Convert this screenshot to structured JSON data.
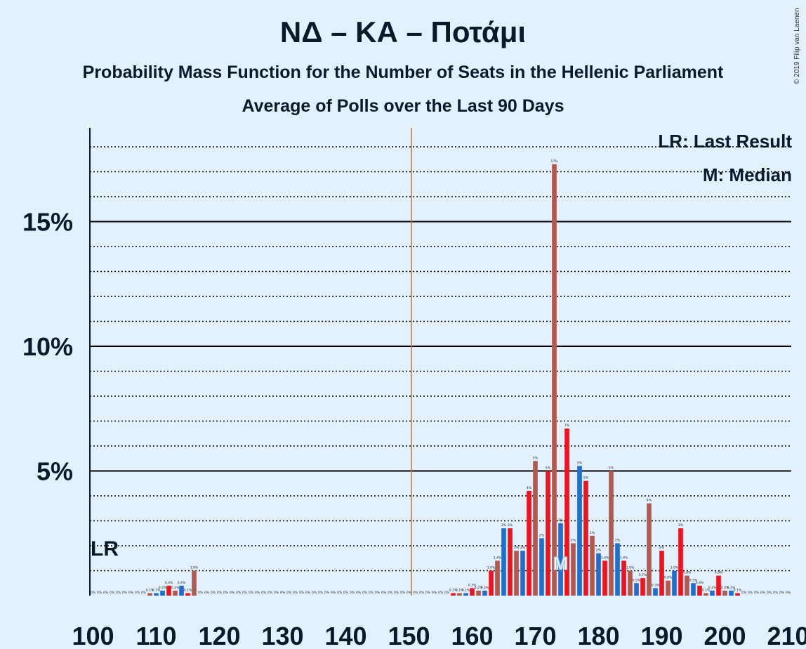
{
  "header": {
    "title": "ΝΔ – ΚΑ – Ποτάμι",
    "subtitle1": "Probability Mass Function for the Number of Seats in the Hellenic Parliament",
    "subtitle2": "Average of Polls over the Last 90 Days",
    "copyright": "© 2019 Filip van Laenen"
  },
  "legend": {
    "last_result": "LR: Last Result",
    "median": "M: Median"
  },
  "chart_data": {
    "type": "bar",
    "title": "ΝΔ – ΚΑ – Ποτάμι",
    "xlim": [
      100,
      210
    ],
    "ylim": [
      0,
      18.8
    ],
    "x_ticks": [
      100,
      110,
      120,
      130,
      140,
      150,
      160,
      170,
      180,
      190,
      200,
      210
    ],
    "y_ticks": [
      {
        "value": 5,
        "label": "5%"
      },
      {
        "value": 10,
        "label": "10%"
      },
      {
        "value": 15,
        "label": "15%"
      }
    ],
    "grid": "dotted every 1%, solid every 5%",
    "majority_line": 151,
    "last_result": {
      "seat": 101,
      "label": "LR"
    },
    "median": {
      "seat": 174,
      "label": "M"
    },
    "colors": {
      "blue": "#1f6fd0",
      "red": "#f0131f",
      "brown": "#b3584c",
      "majority": "#c0783a",
      "axis": "#0b1a2a"
    },
    "bars": [
      {
        "x": 100,
        "v": 0,
        "c": "brown",
        "t": "0%"
      },
      {
        "x": 101,
        "v": 0,
        "c": "blue",
        "t": "0%"
      },
      {
        "x": 102,
        "v": 0,
        "c": "red",
        "t": "0%"
      },
      {
        "x": 103,
        "v": 0,
        "c": "brown",
        "t": "0%"
      },
      {
        "x": 104,
        "v": 0,
        "c": "blue",
        "t": "0%"
      },
      {
        "x": 105,
        "v": 0,
        "c": "red",
        "t": "0%"
      },
      {
        "x": 106,
        "v": 0,
        "c": "brown",
        "t": "0%"
      },
      {
        "x": 107,
        "v": 0,
        "c": "blue",
        "t": "0%"
      },
      {
        "x": 108,
        "v": 0,
        "c": "red",
        "t": "0%"
      },
      {
        "x": 109,
        "v": 0.1,
        "c": "brown",
        "t": "0.1%"
      },
      {
        "x": 110,
        "v": 0.1,
        "c": "blue",
        "t": "0.1%"
      },
      {
        "x": 111,
        "v": 0.2,
        "c": "blue",
        "t": "0.2%"
      },
      {
        "x": 112,
        "v": 0.4,
        "c": "red",
        "t": "0.4%"
      },
      {
        "x": 113,
        "v": 0.2,
        "c": "brown",
        "t": "0.2%"
      },
      {
        "x": 114,
        "v": 0.4,
        "c": "blue",
        "t": "0.4%"
      },
      {
        "x": 115,
        "v": 0.1,
        "c": "red",
        "t": "0.1%"
      },
      {
        "x": 116,
        "v": 1.0,
        "c": "brown",
        "t": "1.0%"
      },
      {
        "x": 117,
        "v": 0,
        "c": "blue",
        "t": "0%"
      },
      {
        "x": 118,
        "v": 0,
        "c": "red",
        "t": "0%"
      },
      {
        "x": 119,
        "v": 0,
        "c": "brown",
        "t": "0%"
      },
      {
        "x": 120,
        "v": 0,
        "c": "blue",
        "t": "0%"
      },
      {
        "x": 121,
        "v": 0,
        "c": "red",
        "t": "0%"
      },
      {
        "x": 122,
        "v": 0,
        "c": "brown",
        "t": "0%"
      },
      {
        "x": 123,
        "v": 0,
        "c": "blue",
        "t": "0%"
      },
      {
        "x": 124,
        "v": 0,
        "c": "red",
        "t": "0%"
      },
      {
        "x": 125,
        "v": 0,
        "c": "brown",
        "t": "0%"
      },
      {
        "x": 126,
        "v": 0,
        "c": "blue",
        "t": "0%"
      },
      {
        "x": 127,
        "v": 0,
        "c": "red",
        "t": "0%"
      },
      {
        "x": 128,
        "v": 0,
        "c": "brown",
        "t": "0%"
      },
      {
        "x": 129,
        "v": 0,
        "c": "blue",
        "t": "0%"
      },
      {
        "x": 130,
        "v": 0,
        "c": "red",
        "t": "0%"
      },
      {
        "x": 131,
        "v": 0,
        "c": "brown",
        "t": "0%"
      },
      {
        "x": 132,
        "v": 0,
        "c": "blue",
        "t": "0%"
      },
      {
        "x": 133,
        "v": 0,
        "c": "red",
        "t": "0%"
      },
      {
        "x": 134,
        "v": 0,
        "c": "brown",
        "t": "0%"
      },
      {
        "x": 135,
        "v": 0,
        "c": "blue",
        "t": "0%"
      },
      {
        "x": 136,
        "v": 0,
        "c": "red",
        "t": "0%"
      },
      {
        "x": 137,
        "v": 0,
        "c": "brown",
        "t": "0%"
      },
      {
        "x": 138,
        "v": 0,
        "c": "blue",
        "t": "0%"
      },
      {
        "x": 139,
        "v": 0,
        "c": "red",
        "t": "0%"
      },
      {
        "x": 140,
        "v": 0,
        "c": "brown",
        "t": "0%"
      },
      {
        "x": 141,
        "v": 0,
        "c": "blue",
        "t": "0%"
      },
      {
        "x": 142,
        "v": 0,
        "c": "red",
        "t": "0%"
      },
      {
        "x": 143,
        "v": 0,
        "c": "brown",
        "t": "0%"
      },
      {
        "x": 144,
        "v": 0,
        "c": "blue",
        "t": "0%"
      },
      {
        "x": 145,
        "v": 0,
        "c": "red",
        "t": "0%"
      },
      {
        "x": 146,
        "v": 0,
        "c": "brown",
        "t": "0%"
      },
      {
        "x": 147,
        "v": 0,
        "c": "blue",
        "t": "0%"
      },
      {
        "x": 148,
        "v": 0,
        "c": "red",
        "t": "0%"
      },
      {
        "x": 149,
        "v": 0,
        "c": "brown",
        "t": "0%"
      },
      {
        "x": 150,
        "v": 0,
        "c": "blue",
        "t": "0%"
      },
      {
        "x": 151,
        "v": 0,
        "c": "red",
        "t": "0%"
      },
      {
        "x": 152,
        "v": 0,
        "c": "brown",
        "t": "0%"
      },
      {
        "x": 153,
        "v": 0,
        "c": "blue",
        "t": "0%"
      },
      {
        "x": 154,
        "v": 0,
        "c": "red",
        "t": "0%"
      },
      {
        "x": 155,
        "v": 0,
        "c": "brown",
        "t": "0%"
      },
      {
        "x": 156,
        "v": 0,
        "c": "blue",
        "t": "0%"
      },
      {
        "x": 157,
        "v": 0.1,
        "c": "red",
        "t": "0.1%"
      },
      {
        "x": 158,
        "v": 0.1,
        "c": "brown",
        "t": "0.1%"
      },
      {
        "x": 159,
        "v": 0.1,
        "c": "blue",
        "t": "0.1%"
      },
      {
        "x": 160,
        "v": 0.3,
        "c": "red",
        "t": "0.3%"
      },
      {
        "x": 161,
        "v": 0.2,
        "c": "brown",
        "t": "0.2%"
      },
      {
        "x": 162,
        "v": 0.2,
        "c": "blue",
        "t": "0.2%"
      },
      {
        "x": 163,
        "v": 1.0,
        "c": "red",
        "t": "1.0%"
      },
      {
        "x": 164,
        "v": 1.4,
        "c": "brown",
        "t": "1.4%"
      },
      {
        "x": 165,
        "v": 2.7,
        "c": "blue",
        "t": "3%"
      },
      {
        "x": 166,
        "v": 2.7,
        "c": "red",
        "t": "3%"
      },
      {
        "x": 167,
        "v": 1.8,
        "c": "brown",
        "t": "2%"
      },
      {
        "x": 168,
        "v": 1.8,
        "c": "blue",
        "t": "2%"
      },
      {
        "x": 169,
        "v": 4.2,
        "c": "red",
        "t": "4%"
      },
      {
        "x": 170,
        "v": 5.4,
        "c": "brown",
        "t": "5%"
      },
      {
        "x": 171,
        "v": 2.3,
        "c": "blue",
        "t": "2%"
      },
      {
        "x": 172,
        "v": 5.0,
        "c": "red",
        "t": "5%"
      },
      {
        "x": 173,
        "v": 17.3,
        "c": "brown",
        "t": "17%"
      },
      {
        "x": 174,
        "v": 2.9,
        "c": "blue",
        "t": "3%"
      },
      {
        "x": 175,
        "v": 6.7,
        "c": "red",
        "t": "7%"
      },
      {
        "x": 176,
        "v": 2.1,
        "c": "brown",
        "t": "2%"
      },
      {
        "x": 177,
        "v": 5.2,
        "c": "blue",
        "t": "5%"
      },
      {
        "x": 178,
        "v": 4.6,
        "c": "red",
        "t": "5%"
      },
      {
        "x": 179,
        "v": 2.4,
        "c": "brown",
        "t": "2%"
      },
      {
        "x": 180,
        "v": 1.7,
        "c": "blue",
        "t": "2%"
      },
      {
        "x": 181,
        "v": 1.4,
        "c": "red",
        "t": "1.4%"
      },
      {
        "x": 182,
        "v": 5.0,
        "c": "brown",
        "t": "5%"
      },
      {
        "x": 183,
        "v": 2.1,
        "c": "blue",
        "t": "2%"
      },
      {
        "x": 184,
        "v": 1.4,
        "c": "red",
        "t": "1.4%"
      },
      {
        "x": 185,
        "v": 1.0,
        "c": "brown",
        "t": "1.0%"
      },
      {
        "x": 186,
        "v": 0.5,
        "c": "blue",
        "t": "0.5%"
      },
      {
        "x": 187,
        "v": 0.7,
        "c": "red",
        "t": "0.7%"
      },
      {
        "x": 188,
        "v": 3.7,
        "c": "brown",
        "t": "4%"
      },
      {
        "x": 189,
        "v": 0.3,
        "c": "blue",
        "t": "0.3%"
      },
      {
        "x": 190,
        "v": 1.8,
        "c": "red",
        "t": "2%"
      },
      {
        "x": 191,
        "v": 0.6,
        "c": "brown",
        "t": "0.6%"
      },
      {
        "x": 192,
        "v": 1.0,
        "c": "blue",
        "t": "1.0%"
      },
      {
        "x": 193,
        "v": 2.7,
        "c": "red",
        "t": "3%"
      },
      {
        "x": 194,
        "v": 0.8,
        "c": "brown",
        "t": "0.8%"
      },
      {
        "x": 195,
        "v": 0.5,
        "c": "blue",
        "t": "0.5%"
      },
      {
        "x": 196,
        "v": 0.4,
        "c": "red",
        "t": "0.4%"
      },
      {
        "x": 197,
        "v": 0.1,
        "c": "brown",
        "t": "0.1%"
      },
      {
        "x": 198,
        "v": 0.2,
        "c": "blue",
        "t": "0.2%"
      },
      {
        "x": 199,
        "v": 0.8,
        "c": "red",
        "t": "0.8%"
      },
      {
        "x": 200,
        "v": 0.2,
        "c": "brown",
        "t": "0.2%"
      },
      {
        "x": 201,
        "v": 0.2,
        "c": "blue",
        "t": "0.2%"
      },
      {
        "x": 202,
        "v": 0.1,
        "c": "red",
        "t": "0.1%"
      },
      {
        "x": 203,
        "v": 0,
        "c": "brown",
        "t": "0%"
      },
      {
        "x": 204,
        "v": 0,
        "c": "blue",
        "t": "0%"
      },
      {
        "x": 205,
        "v": 0,
        "c": "red",
        "t": "0%"
      },
      {
        "x": 206,
        "v": 0,
        "c": "brown",
        "t": "0%"
      },
      {
        "x": 207,
        "v": 0,
        "c": "blue",
        "t": "0%"
      },
      {
        "x": 208,
        "v": 0,
        "c": "red",
        "t": "0%"
      },
      {
        "x": 209,
        "v": 0,
        "c": "brown",
        "t": "0%"
      },
      {
        "x": 210,
        "v": 0,
        "c": "blue",
        "t": "0%"
      }
    ]
  }
}
